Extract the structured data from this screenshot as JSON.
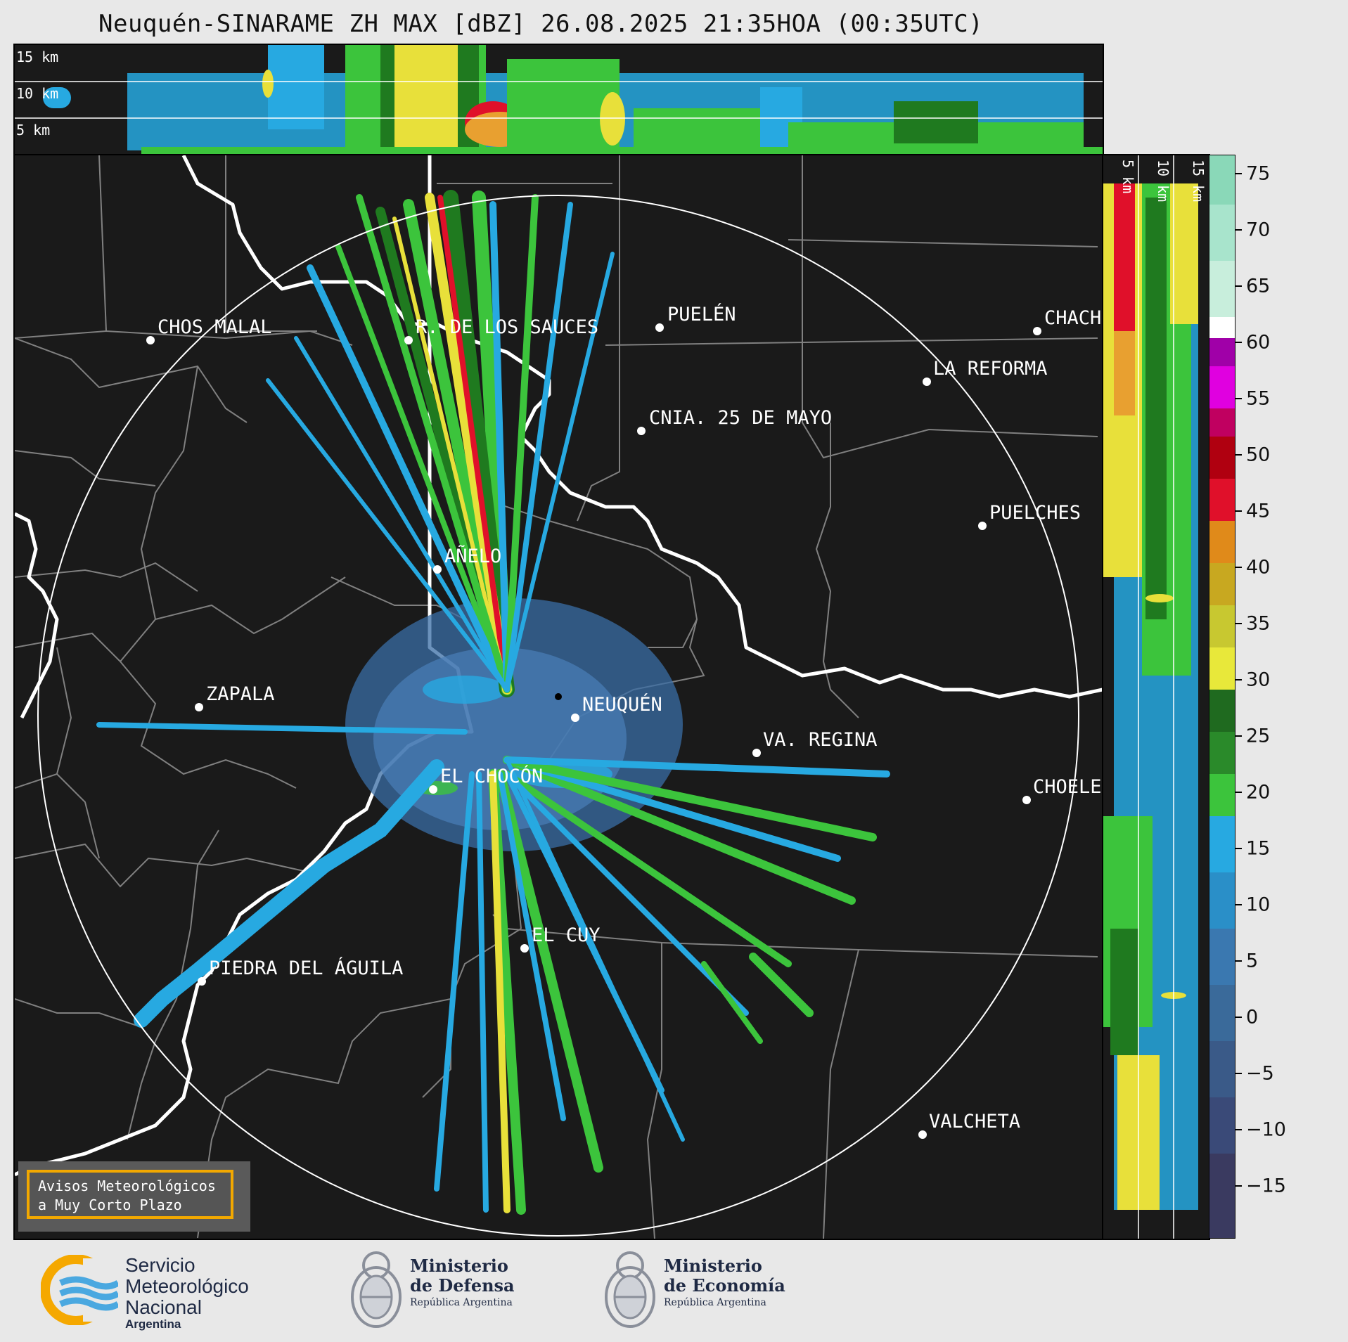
{
  "title": "Neuquén-SINARAME ZH MAX [dBZ] 26.08.2025 21:35HOA (00:35UTC)",
  "top_panel": {
    "height_labels": [
      "15 km",
      "10 km",
      "5 km"
    ]
  },
  "side_panel": {
    "height_labels": [
      "5 km",
      "10 km",
      "15 km"
    ]
  },
  "cities": [
    {
      "name": "CHOS MALAL"
    },
    {
      "name": "R. DE LOS SAUCES"
    },
    {
      "name": "PUELÉN"
    },
    {
      "name": "CHACH"
    },
    {
      "name": "LA REFORMA"
    },
    {
      "name": "CNIA. 25 DE MAYO"
    },
    {
      "name": "PUELCHES"
    },
    {
      "name": "AÑELO"
    },
    {
      "name": "ZAPALA"
    },
    {
      "name": "NEUQUÉN"
    },
    {
      "name": "VA. REGINA"
    },
    {
      "name": "EL CHOCÓN"
    },
    {
      "name": "CHOELE"
    },
    {
      "name": "EL CUY"
    },
    {
      "name": "PIEDRA DEL ÁGUILA"
    },
    {
      "name": "VALCHETA"
    }
  ],
  "colorbar": {
    "unit": "dBZ",
    "ticks": [
      "75",
      "70",
      "65",
      "60",
      "55",
      "50",
      "45",
      "40",
      "35",
      "30",
      "25",
      "20",
      "15",
      "10",
      "5",
      "0",
      "−5",
      "−10",
      "−15"
    ]
  },
  "warning_box": {
    "line1": "Avisos Meteorológicos",
    "line2": "a Muy Corto Plazo"
  },
  "logos": {
    "smn": {
      "line1": "Servicio",
      "line2": "Meteorológico",
      "line3": "Nacional",
      "line4": "Argentina"
    },
    "defensa": {
      "line1": "Ministerio",
      "line2": "de Defensa",
      "line3": "República Argentina"
    },
    "economia": {
      "line1": "Ministerio",
      "line2": "de Economía",
      "line3": "República Argentina"
    }
  },
  "colors": {
    "background": "#1a1a1a",
    "rings": "#ffffff",
    "borders": "#808080",
    "weak_echo": "#3a6ea5",
    "light_blue": "#27a9e1",
    "green": "#3cc43c",
    "dark_green": "#1f7a1f",
    "yellow": "#e8e03a",
    "red": "#e0102a",
    "warning_border": "#f2a800"
  }
}
